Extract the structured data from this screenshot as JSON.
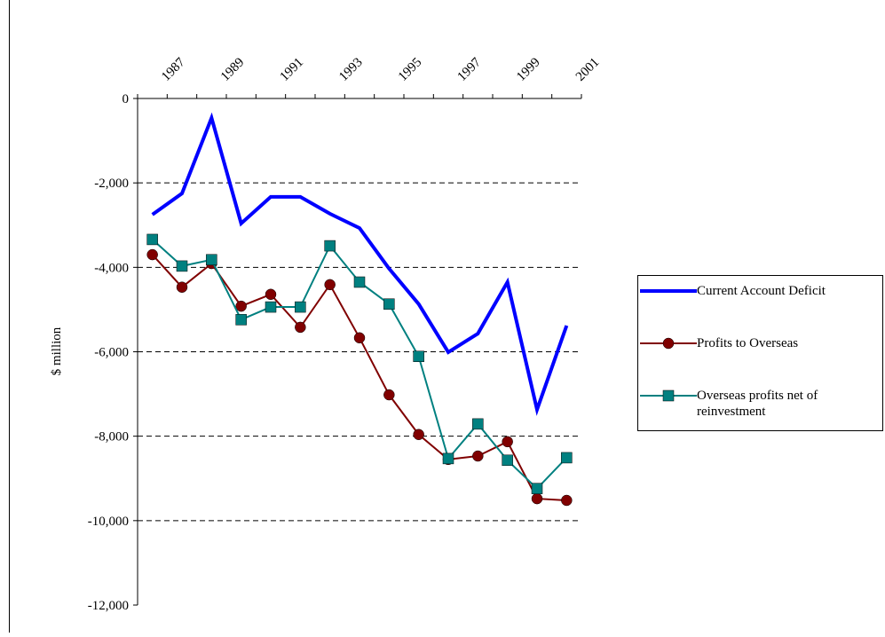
{
  "chart_data": {
    "type": "line",
    "y_label": "$ million",
    "categories": [
      "1987",
      null,
      "1989",
      null,
      "1991",
      null,
      "1993",
      null,
      "1995",
      null,
      "1997",
      null,
      "1999",
      null,
      "2001"
    ],
    "series": [
      {
        "name": "Current Account Deficit",
        "color": "#0000ff",
        "marker": "none",
        "values": [
          -2750,
          -2250,
          -460,
          -2960,
          -2330,
          -2330,
          -2730,
          -3070,
          -4030,
          -4870,
          -6010,
          -5570,
          -4350,
          -7370,
          -5380
        ]
      },
      {
        "name": "Profits to Overseas",
        "color": "#800000",
        "marker": "circle",
        "values": [
          -3700,
          -4470,
          -3910,
          -4920,
          -4640,
          -5420,
          -4410,
          -5670,
          -7020,
          -7960,
          -8550,
          -8470,
          -8130,
          -9480,
          -9520
        ]
      },
      {
        "name": "Overseas profits net of reinvestment",
        "color": "#008080",
        "marker": "square",
        "values": [
          -3340,
          -3970,
          -3820,
          -5240,
          -4940,
          -4940,
          -3490,
          -4350,
          -4870,
          -6110,
          -8530,
          -7710,
          -8570,
          -9240,
          -8510
        ]
      }
    ],
    "ylim": [
      -12000,
      0
    ],
    "yticks": [
      {
        "value": -12000,
        "label": "-12,000"
      },
      {
        "value": -10000,
        "label": "-10,000"
      },
      {
        "value": -8000,
        "label": "-8,000"
      },
      {
        "value": -6000,
        "label": "-6,000"
      },
      {
        "value": -4000,
        "label": "-4,000"
      },
      {
        "value": -2000,
        "label": "-2,000"
      },
      0
    ],
    "grid": true
  }
}
